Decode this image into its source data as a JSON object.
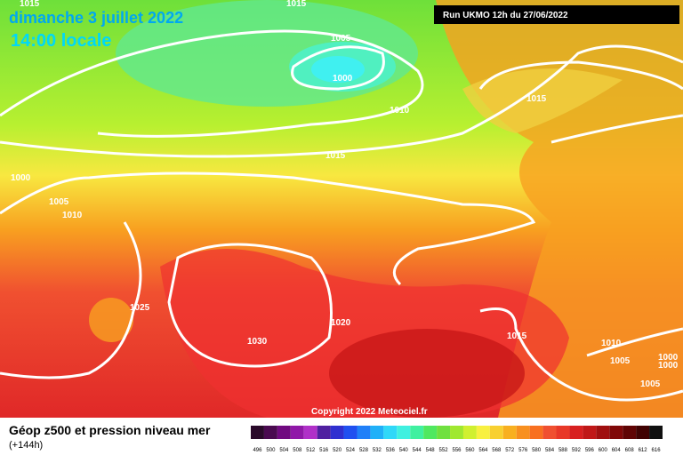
{
  "header": {
    "date": "dimanche 3 juillet 2022",
    "time": "14:00 locale",
    "run": "Run UKMO 12h du 27/06/2022"
  },
  "map": {
    "copyright": "Copyright 2022 Meteociel.fr",
    "isobar_labels": [
      "1015",
      "1015",
      "1005",
      "1000",
      "1010",
      "1015",
      "1015",
      "1000",
      "1005",
      "1010",
      "1025",
      "1030",
      "1020",
      "1015",
      "1010",
      "1005",
      "1000",
      "1000",
      "1005"
    ]
  },
  "footer": {
    "title": "Géop z500 et pression niveau mer",
    "lead": "(+144h)"
  },
  "scale": {
    "labels": [
      "496",
      "500",
      "504",
      "508",
      "512",
      "516",
      "520",
      "524",
      "528",
      "532",
      "536",
      "540",
      "544",
      "548",
      "552",
      "556",
      "560",
      "564",
      "568",
      "572",
      "576",
      "580",
      "584",
      "588",
      "592",
      "596",
      "600",
      "604",
      "608",
      "612",
      "616"
    ]
  }
}
